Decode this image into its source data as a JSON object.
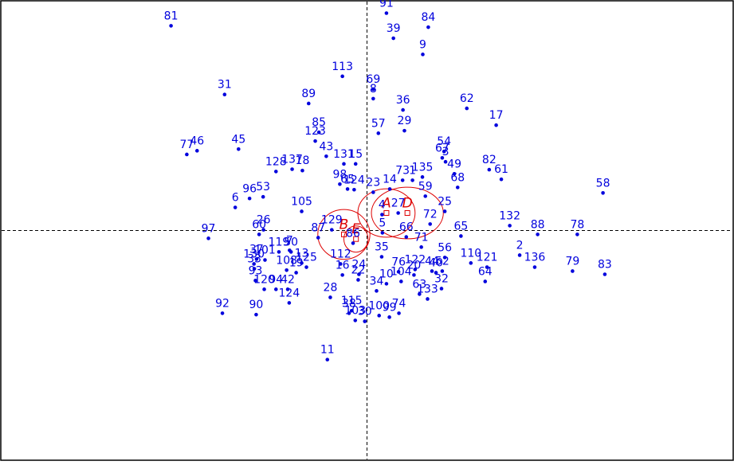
{
  "chart_data": {
    "type": "scatter",
    "title": "",
    "xlabel": "",
    "ylabel": "",
    "xlim": [
      -1.0,
      1.0
    ],
    "ylim": [
      -1.0,
      1.0
    ],
    "grid": false,
    "axes_style": "dashed-origin-lines",
    "colors": {
      "points": "#0000dd",
      "groups": "#dd0000",
      "frame": "#000000",
      "axes": "#000000"
    },
    "points": [
      {
        "label": "81",
        "x": -0.534,
        "y": 0.888
      },
      {
        "label": "91",
        "x": 0.053,
        "y": 0.943
      },
      {
        "label": "84",
        "x": 0.167,
        "y": 0.882
      },
      {
        "label": "39",
        "x": 0.072,
        "y": 0.834
      },
      {
        "label": "9",
        "x": 0.152,
        "y": 0.764
      },
      {
        "label": "113",
        "x": -0.067,
        "y": 0.669
      },
      {
        "label": "69",
        "x": 0.017,
        "y": 0.613
      },
      {
        "label": "31",
        "x": -0.388,
        "y": 0.59
      },
      {
        "label": "8",
        "x": 0.017,
        "y": 0.572
      },
      {
        "label": "89",
        "x": -0.159,
        "y": 0.551
      },
      {
        "label": "36",
        "x": 0.098,
        "y": 0.523
      },
      {
        "label": "62",
        "x": 0.272,
        "y": 0.53
      },
      {
        "label": "17",
        "x": 0.352,
        "y": 0.457
      },
      {
        "label": "57",
        "x": 0.031,
        "y": 0.422
      },
      {
        "label": "29",
        "x": 0.102,
        "y": 0.433
      },
      {
        "label": "85",
        "x": -0.131,
        "y": 0.426
      },
      {
        "label": "123",
        "x": -0.141,
        "y": 0.388
      },
      {
        "label": "77",
        "x": -0.491,
        "y": 0.33
      },
      {
        "label": "46",
        "x": -0.463,
        "y": 0.346
      },
      {
        "label": "45",
        "x": -0.35,
        "y": 0.353
      },
      {
        "label": "43",
        "x": -0.111,
        "y": 0.322
      },
      {
        "label": "54",
        "x": 0.21,
        "y": 0.343
      },
      {
        "label": "67",
        "x": 0.205,
        "y": 0.315
      },
      {
        "label": "3",
        "x": 0.214,
        "y": 0.298
      },
      {
        "label": "131",
        "x": -0.063,
        "y": 0.289
      },
      {
        "label": "15",
        "x": -0.031,
        "y": 0.289
      },
      {
        "label": "128",
        "x": -0.248,
        "y": 0.256
      },
      {
        "label": "137",
        "x": -0.204,
        "y": 0.266
      },
      {
        "label": "18",
        "x": -0.176,
        "y": 0.26
      },
      {
        "label": "82",
        "x": 0.333,
        "y": 0.264
      },
      {
        "label": "61",
        "x": 0.366,
        "y": 0.222
      },
      {
        "label": "49",
        "x": 0.238,
        "y": 0.246
      },
      {
        "label": "135",
        "x": 0.151,
        "y": 0.232
      },
      {
        "label": "73",
        "x": 0.097,
        "y": 0.218
      },
      {
        "label": "1",
        "x": 0.124,
        "y": 0.218
      },
      {
        "label": "68",
        "x": 0.247,
        "y": 0.187
      },
      {
        "label": "98",
        "x": -0.074,
        "y": 0.201
      },
      {
        "label": "65",
        "x": -0.053,
        "y": 0.18
      },
      {
        "label": "96",
        "x": -0.32,
        "y": 0.139
      },
      {
        "label": "53",
        "x": -0.283,
        "y": 0.146
      },
      {
        "label": "14",
        "x": 0.062,
        "y": 0.18
      },
      {
        "label": "23",
        "x": 0.017,
        "y": 0.166
      },
      {
        "label": "124",
        "x": -0.035,
        "y": 0.177
      },
      {
        "label": "59",
        "x": 0.159,
        "y": 0.149
      },
      {
        "label": "6",
        "x": -0.359,
        "y": 0.1
      },
      {
        "label": "105",
        "x": -0.178,
        "y": 0.083
      },
      {
        "label": "27",
        "x": 0.085,
        "y": 0.076
      },
      {
        "label": "4",
        "x": 0.041,
        "y": 0.069
      },
      {
        "label": "25",
        "x": 0.212,
        "y": 0.083
      },
      {
        "label": "72",
        "x": 0.172,
        "y": 0.028
      },
      {
        "label": "132",
        "x": 0.389,
        "y": 0.021
      },
      {
        "label": "58",
        "x": 0.643,
        "y": 0.163
      },
      {
        "label": "88",
        "x": 0.465,
        "y": -0.017
      },
      {
        "label": "78",
        "x": 0.573,
        "y": -0.017
      },
      {
        "label": "97",
        "x": -0.432,
        "y": -0.034
      },
      {
        "label": "26",
        "x": -0.282,
        "y": 0.003
      },
      {
        "label": "60",
        "x": -0.294,
        "y": -0.017
      },
      {
        "label": "129",
        "x": -0.096,
        "y": 0.003
      },
      {
        "label": "5",
        "x": 0.042,
        "y": -0.01
      },
      {
        "label": "66",
        "x": 0.107,
        "y": -0.028
      },
      {
        "label": "65",
        "x": 0.256,
        "y": -0.024
      },
      {
        "label": "87",
        "x": -0.133,
        "y": -0.031
      },
      {
        "label": "86",
        "x": -0.038,
        "y": -0.055
      },
      {
        "label": "71",
        "x": 0.148,
        "y": -0.072
      },
      {
        "label": "7",
        "x": -0.211,
        "y": -0.086
      },
      {
        "label": "119",
        "x": -0.24,
        "y": -0.093
      },
      {
        "label": "50",
        "x": -0.207,
        "y": -0.093
      },
      {
        "label": "35",
        "x": 0.04,
        "y": -0.114
      },
      {
        "label": "56",
        "x": 0.212,
        "y": -0.117
      },
      {
        "label": "110",
        "x": 0.283,
        "y": -0.141
      },
      {
        "label": "2",
        "x": 0.416,
        "y": -0.107
      },
      {
        "label": "136",
        "x": 0.457,
        "y": -0.159
      },
      {
        "label": "37",
        "x": -0.301,
        "y": -0.124
      },
      {
        "label": "101",
        "x": -0.278,
        "y": -0.128
      },
      {
        "label": "112",
        "x": -0.072,
        "y": -0.145
      },
      {
        "label": "13",
        "x": -0.178,
        "y": -0.141
      },
      {
        "label": "125",
        "x": -0.165,
        "y": -0.159
      },
      {
        "label": "130",
        "x": -0.308,
        "y": -0.145
      },
      {
        "label": "121",
        "x": 0.327,
        "y": -0.159
      },
      {
        "label": "79",
        "x": 0.56,
        "y": -0.176
      },
      {
        "label": "83",
        "x": 0.648,
        "y": -0.19
      },
      {
        "label": "44",
        "x": 0.177,
        "y": -0.176
      },
      {
        "label": "52",
        "x": 0.205,
        "y": -0.176
      },
      {
        "label": "122",
        "x": 0.131,
        "y": -0.169
      },
      {
        "label": "76",
        "x": 0.086,
        "y": -0.179
      },
      {
        "label": "20",
        "x": 0.128,
        "y": -0.193
      },
      {
        "label": "40",
        "x": 0.188,
        "y": -0.183
      },
      {
        "label": "33",
        "x": -0.307,
        "y": -0.166
      },
      {
        "label": "108",
        "x": -0.219,
        "y": -0.172
      },
      {
        "label": "19",
        "x": -0.193,
        "y": -0.183
      },
      {
        "label": "16",
        "x": -0.067,
        "y": -0.193
      },
      {
        "label": "24",
        "x": -0.022,
        "y": -0.19
      },
      {
        "label": "22",
        "x": -0.024,
        "y": -0.214
      },
      {
        "label": "104",
        "x": 0.093,
        "y": -0.221
      },
      {
        "label": "64",
        "x": 0.322,
        "y": -0.221
      },
      {
        "label": "93",
        "x": -0.304,
        "y": -0.217
      },
      {
        "label": "32",
        "x": 0.203,
        "y": -0.252
      },
      {
        "label": "10",
        "x": 0.053,
        "y": -0.231
      },
      {
        "label": "120",
        "x": -0.28,
        "y": -0.255
      },
      {
        "label": "94",
        "x": -0.248,
        "y": -0.255
      },
      {
        "label": "42",
        "x": -0.216,
        "y": -0.255
      },
      {
        "label": "34",
        "x": 0.026,
        "y": -0.262
      },
      {
        "label": "63",
        "x": 0.143,
        "y": -0.276
      },
      {
        "label": "133",
        "x": 0.165,
        "y": -0.297
      },
      {
        "label": "28",
        "x": -0.1,
        "y": -0.29
      },
      {
        "label": "124",
        "x": -0.212,
        "y": -0.314
      },
      {
        "label": "92",
        "x": -0.394,
        "y": -0.359
      },
      {
        "label": "90",
        "x": -0.302,
        "y": -0.365
      },
      {
        "label": "38",
        "x": -0.049,
        "y": -0.359
      },
      {
        "label": "115",
        "x": -0.042,
        "y": -0.348
      },
      {
        "label": "74",
        "x": 0.087,
        "y": -0.359
      },
      {
        "label": "100",
        "x": 0.033,
        "y": -0.369
      },
      {
        "label": "99",
        "x": 0.061,
        "y": -0.376
      },
      {
        "label": "103",
        "x": -0.032,
        "y": -0.39
      },
      {
        "label": "30",
        "x": -0.006,
        "y": -0.394
      },
      {
        "label": "11",
        "x": -0.108,
        "y": -0.56
      }
    ],
    "groups": [
      {
        "label": "A",
        "x": 0.053,
        "y": 0.076,
        "rx": 0.078,
        "ry": 0.105
      },
      {
        "label": "D",
        "x": 0.11,
        "y": 0.076,
        "rx": 0.098,
        "ry": 0.112
      },
      {
        "label": "B",
        "x": -0.063,
        "y": -0.017,
        "rx": 0.071,
        "ry": 0.108
      },
      {
        "label": "E",
        "x": -0.03,
        "y": -0.037,
        "rx": 0.033,
        "ry": 0.057
      }
    ]
  }
}
